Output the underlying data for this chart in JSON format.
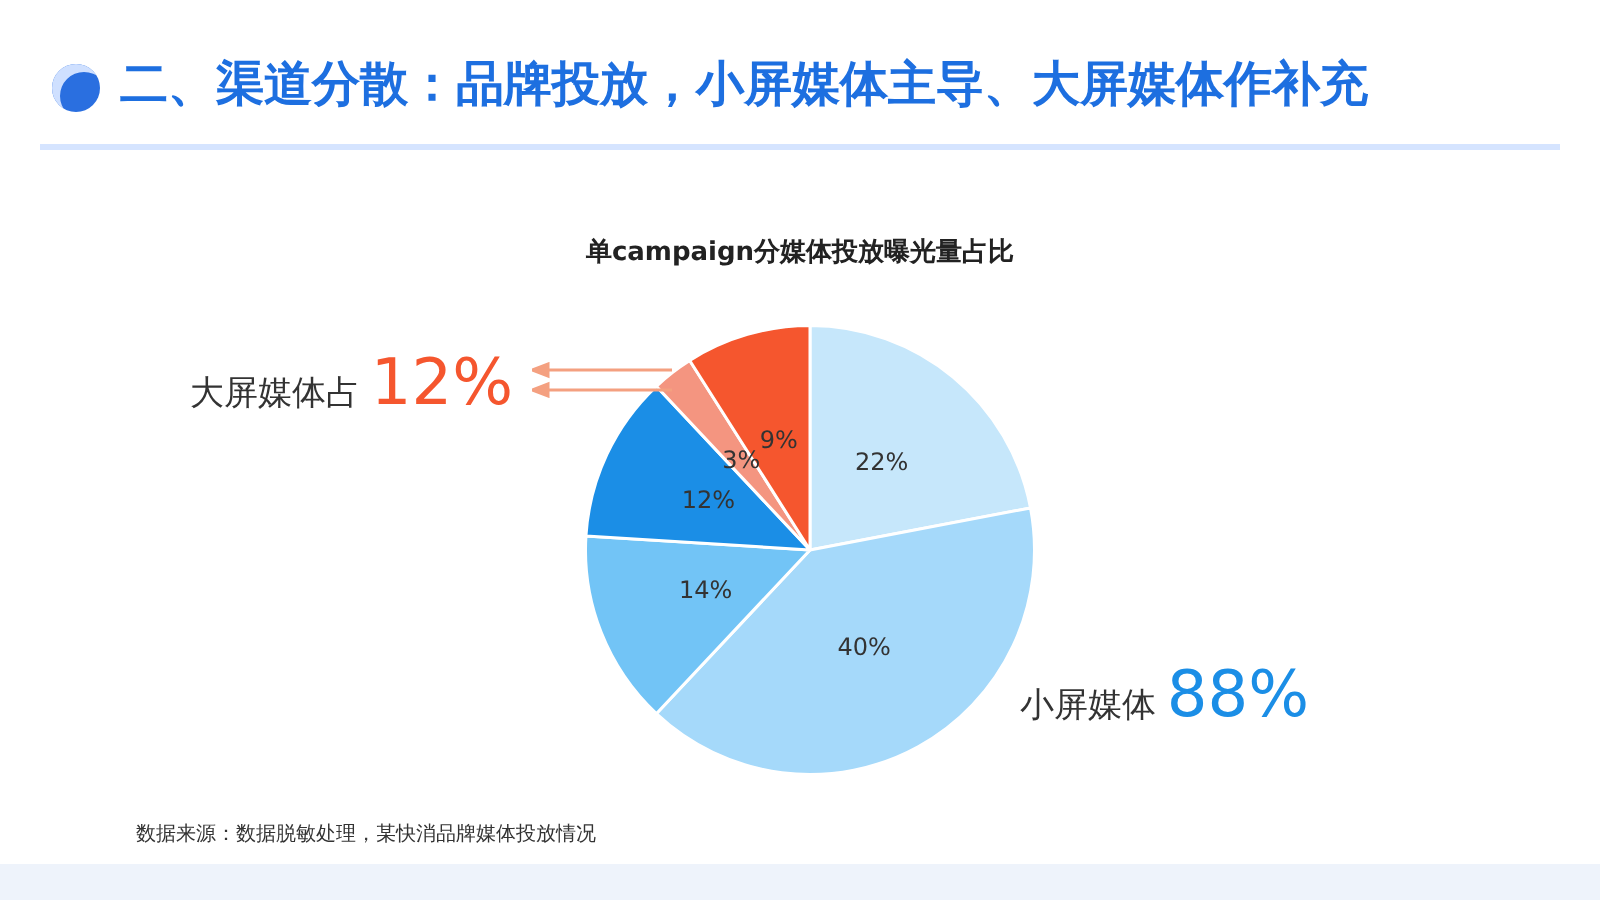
{
  "chart_data": {
    "type": "pie",
    "title": "单campaign分媒体投放曝光量占比",
    "subtitle": "二、渠道分散：品牌投放，小屏媒体主导、大屏媒体作补充",
    "categories": [
      null,
      null,
      null,
      null,
      null,
      null
    ],
    "values": [
      22,
      40,
      14,
      12,
      3,
      9
    ],
    "value_labels": [
      "22%",
      "40%",
      "14%",
      "12%",
      "3%",
      "9%"
    ],
    "colors": [
      "#c6e7fb",
      "#a5d9fa",
      "#72c4f6",
      "#1b8ee6",
      "#f49580",
      "#f5562e"
    ],
    "annotations": [
      "大屏媒体占 12%",
      "小屏媒体 88%",
      "数据来源：数据脱敏处理，某快消品牌媒体投放情况"
    ]
  }
}
